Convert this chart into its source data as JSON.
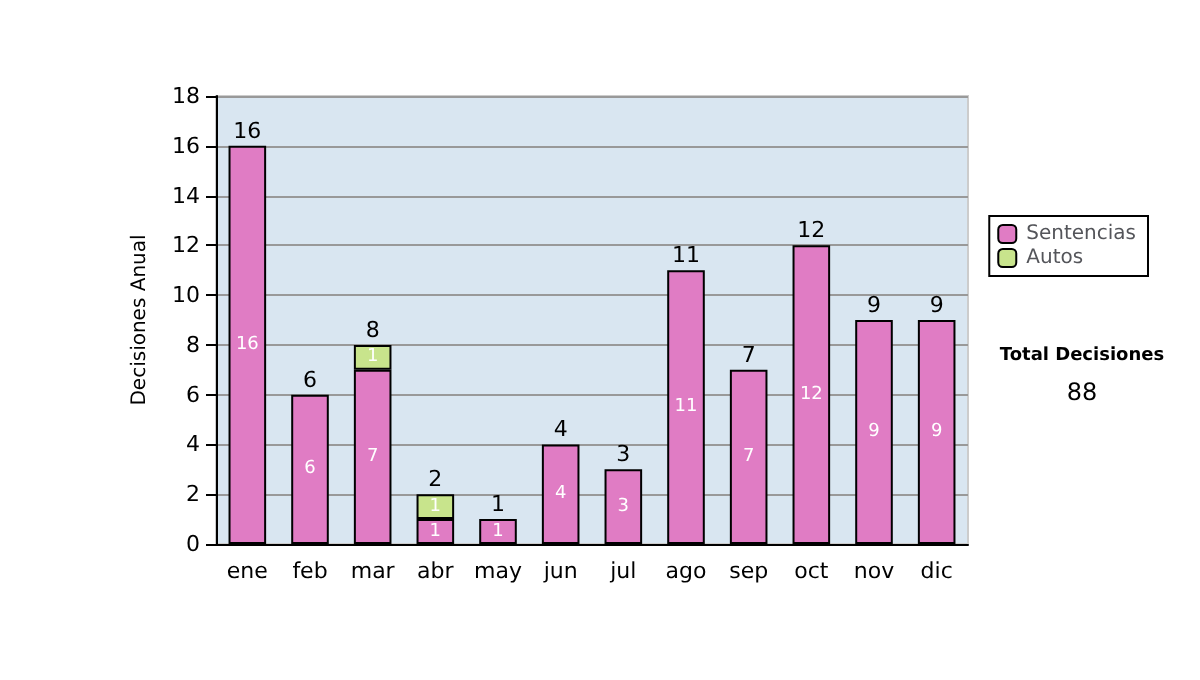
{
  "chart_data": {
    "type": "bar",
    "stacked": true,
    "ylabel": "Decisiones Anual",
    "categories": [
      "ene",
      "feb",
      "mar",
      "abr",
      "may",
      "jun",
      "jul",
      "ago",
      "sep",
      "oct",
      "nov",
      "dic"
    ],
    "series": [
      {
        "name": "Sentencias",
        "color": "#e07cc4",
        "values": [
          16,
          6,
          7,
          1,
          1,
          4,
          3,
          11,
          7,
          12,
          9,
          9
        ]
      },
      {
        "name": "Autos",
        "color": "#c8e48c",
        "values": [
          null,
          null,
          1,
          1,
          null,
          null,
          null,
          null,
          null,
          null,
          null,
          null
        ]
      }
    ],
    "totals": [
      "16",
      "6",
      "8",
      "2",
      "1",
      "4",
      "3",
      "11",
      "7",
      "12",
      "9",
      "9"
    ],
    "ylim": [
      0,
      18
    ],
    "yticks": [
      0,
      2,
      4,
      6,
      8,
      10,
      12,
      14,
      16,
      18
    ],
    "grid": "y",
    "legend": "right",
    "data_labels": true,
    "annotations": [
      "Total Decisiones",
      "88"
    ]
  }
}
